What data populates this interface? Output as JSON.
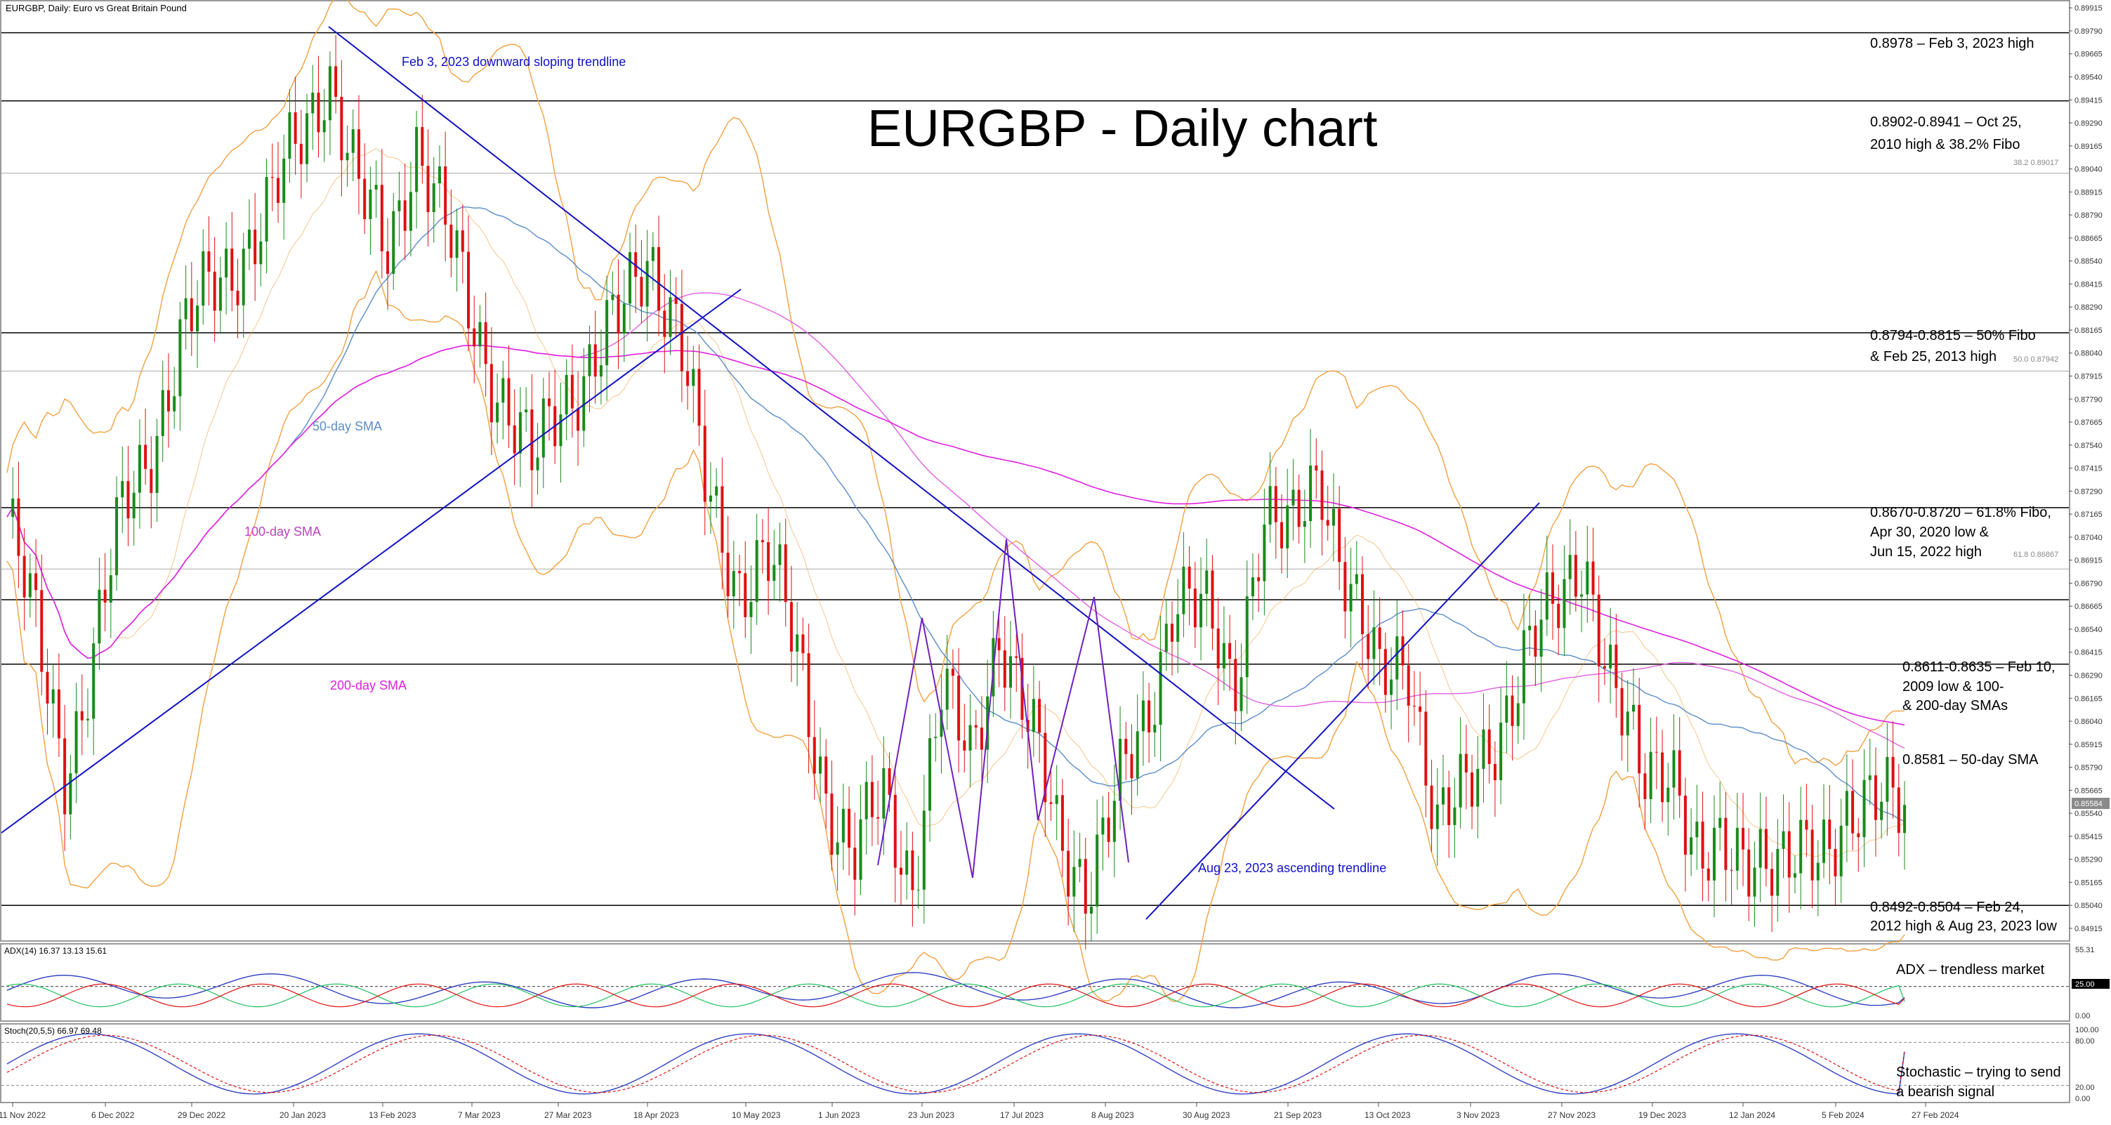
{
  "header": {
    "symbol_label": "EURGBP, Daily:",
    "description": "Euro vs Great Britain Pound",
    "big_title": "EURGBP - Daily chart"
  },
  "colors": {
    "bull": "#1a8a1a",
    "bear": "#e01010",
    "trendline": "#1010c8",
    "sma50": "#5b8cc8",
    "sma100": "#e060e0",
    "sma200": "#e020e0",
    "bollinger": "#f0a040",
    "adx": "#3040c0",
    "plus_di": "#20c060",
    "minus_di": "#e01010",
    "stoch_main": "#3040c0",
    "stoch_signal": "#e01010"
  },
  "chart_data": [
    {
      "type": "candlestick",
      "title": "EURGBP - Daily chart",
      "ylim": [
        0.8485,
        0.8995
      ],
      "y_ticks": [
        "0.89915",
        "0.89790",
        "0.89665",
        "0.89540",
        "0.89415",
        "0.89290",
        "0.89165",
        "0.89040",
        "0.88915",
        "0.88790",
        "0.88665",
        "0.88540",
        "0.88415",
        "0.88290",
        "0.88165",
        "0.88040",
        "0.87915",
        "0.87790",
        "0.87665",
        "0.87540",
        "0.87415",
        "0.87290",
        "0.87165",
        "0.87040",
        "0.86915",
        "0.86790",
        "0.86665",
        "0.86540",
        "0.86415",
        "0.86290",
        "0.86165",
        "0.86040",
        "0.85915",
        "0.85790",
        "0.85665",
        "0.85540",
        "0.85415",
        "0.85290",
        "0.85165",
        "0.85040",
        "0.84915"
      ],
      "x_ticks": [
        "11 Nov 2022",
        "6 Dec 2022",
        "29 Dec 2022",
        "20 Jan 2023",
        "13 Feb 2023",
        "7 Mar 2023",
        "27 Mar 2023",
        "18 Apr 2023",
        "10 May 2023",
        "1 Jun 2023",
        "23 Jun 2023",
        "17 Jul 2023",
        "8 Aug 2023",
        "30 Aug 2023",
        "21 Sep 2023",
        "13 Oct 2023",
        "3 Nov 2023",
        "27 Nov 2023",
        "19 Dec 2023",
        "12 Jan 2024",
        "5 Feb 2024",
        "27 Feb 2024"
      ],
      "current_price": "0.85584",
      "close_series_approx": [
        0.8715,
        0.865,
        0.858,
        0.864,
        0.872,
        0.876,
        0.881,
        0.884,
        0.886,
        0.888,
        0.892,
        0.896,
        0.889,
        0.886,
        0.892,
        0.887,
        0.882,
        0.878,
        0.874,
        0.878,
        0.88,
        0.882,
        0.886,
        0.882,
        0.872,
        0.868,
        0.87,
        0.864,
        0.857,
        0.853,
        0.856,
        0.852,
        0.862,
        0.858,
        0.866,
        0.86,
        0.854,
        0.852,
        0.856,
        0.86,
        0.868,
        0.866,
        0.862,
        0.872,
        0.87,
        0.874,
        0.868,
        0.862,
        0.864,
        0.855,
        0.856,
        0.86,
        0.864,
        0.866,
        0.87,
        0.862,
        0.857,
        0.859,
        0.852,
        0.853,
        0.854,
        0.852,
        0.853,
        0.856,
        0.8555,
        0.8558
      ],
      "horizontal_levels": [
        {
          "price": 0.8978,
          "label": "0.8978 – Feb 3, 2023 high"
        },
        {
          "price": 0.8941,
          "label_line1": "0.8902-0.8941 – Oct 25,",
          "label_line2": "2010 high & 38.2% Fibo"
        },
        {
          "price": 0.8815,
          "label_line1": "0.8794-0.8815 – 50% Fibo",
          "label_line2": "& Feb 25, 2013 high"
        },
        {
          "price": 0.872,
          "label_line1": "0.8670-0.8720 – 61.8% Fibo,",
          "label_line2": "Apr 30, 2020 low &",
          "label_line3": "Jun 15, 2022 high"
        },
        {
          "price": 0.867
        },
        {
          "price": 0.8635,
          "label_line1": "0.8611-0.8635 – Feb 10,",
          "label_line2": "2009 low & 100-",
          "label_line3": "& 200-day SMAs"
        },
        {
          "price": 0.8504,
          "label_line1": "0.8492-0.8504 – Feb 24,",
          "label_line2": "2012 high & Aug 23, 2023 low"
        }
      ],
      "fibo_marks": [
        "38.2 0.89017",
        "50.0 0.87942",
        "61.8 0.86867"
      ],
      "annotations": {
        "downtrend": "Feb 3, 2023 downward sloping trendline",
        "uptrend": "Aug 23, 2023 ascending trendline",
        "sma50": "50-day SMA",
        "sma100": "100-day SMA",
        "sma200": "200-day SMA",
        "sma50_value": "0.8581 – 50-day SMA"
      }
    },
    {
      "type": "line",
      "indicator": "ADX",
      "header": "ADX(14) 16.37 13.13 15.61",
      "values": {
        "adx": 16.37,
        "plus_di": 13.13,
        "minus_di": 15.61
      },
      "ylim": [
        0,
        55.31
      ],
      "y_ticks": [
        "55.31",
        "25.00",
        "0.00"
      ],
      "annotation": "ADX – trendless market"
    },
    {
      "type": "line",
      "indicator": "Stochastic",
      "header": "Stoch(20,5,5) 66.97 69.48",
      "values": {
        "main": 66.97,
        "signal": 69.48
      },
      "ylim": [
        0,
        100
      ],
      "y_ticks": [
        "100.00",
        "80.00",
        "20.00",
        "0.00"
      ],
      "annotation_line1": "Stochastic – trying to send",
      "annotation_line2": "a bearish signal"
    }
  ]
}
